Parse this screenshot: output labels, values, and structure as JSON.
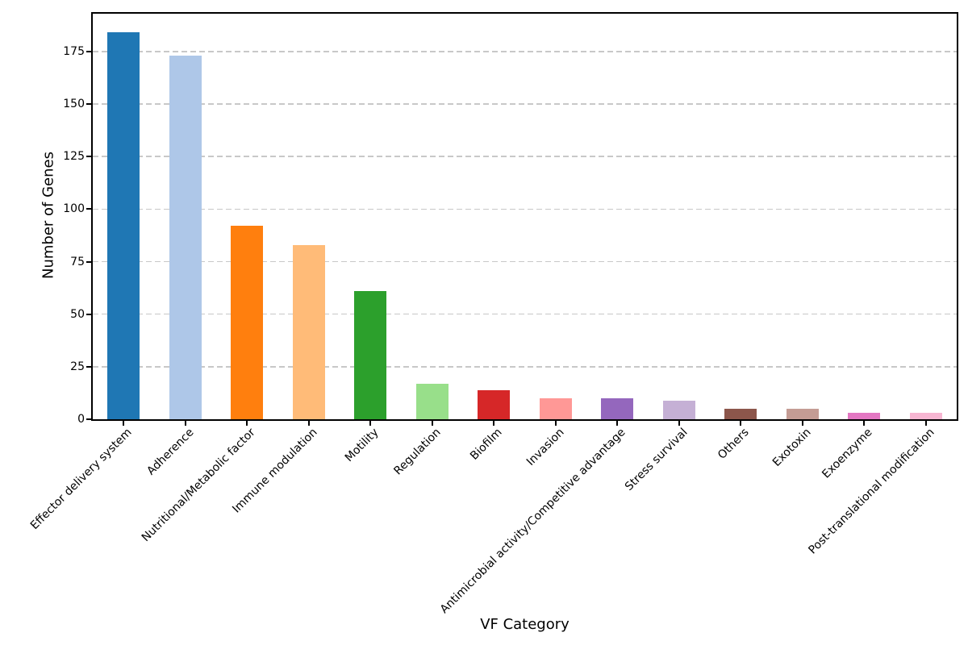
{
  "figure": {
    "xlabel": "VF Category",
    "ylabel": "Number of Genes"
  },
  "chart_data": {
    "type": "bar",
    "title": "",
    "xlabel": "VF Category",
    "ylabel": "Number of Genes",
    "categories": [
      "Effector delivery system",
      "Adherence",
      "Nutritional/Metabolic factor",
      "Immune modulation",
      "Motility",
      "Regulation",
      "Biofilm",
      "Invasion",
      "Antimicrobial activity/Competitive advantage",
      "Stress survival",
      "Others",
      "Exotoxin",
      "Exoenzyme",
      "Post-translational modification"
    ],
    "values": [
      184,
      173,
      92,
      83,
      61,
      17,
      14,
      10,
      10,
      9,
      5,
      5,
      3,
      3
    ],
    "bar_colors": [
      "#1f77b4",
      "#aec7e8",
      "#ff7f0e",
      "#ffbb78",
      "#2ca02c",
      "#98df8a",
      "#d62728",
      "#ff9896",
      "#9467bd",
      "#c5b0d5",
      "#8c564b",
      "#c49c94",
      "#e377c2",
      "#f7b6d2"
    ],
    "ylim": [
      0,
      193
    ],
    "yticks": [
      0,
      25,
      50,
      75,
      100,
      125,
      150,
      175
    ],
    "grid": "horizontal-dashed",
    "gridline_color": "#c8c8c8",
    "axis_color": "#000000",
    "background": "#ffffff",
    "bar_width_fraction": 0.52,
    "xtick_label_rotation_deg": 45,
    "legend": "none"
  }
}
